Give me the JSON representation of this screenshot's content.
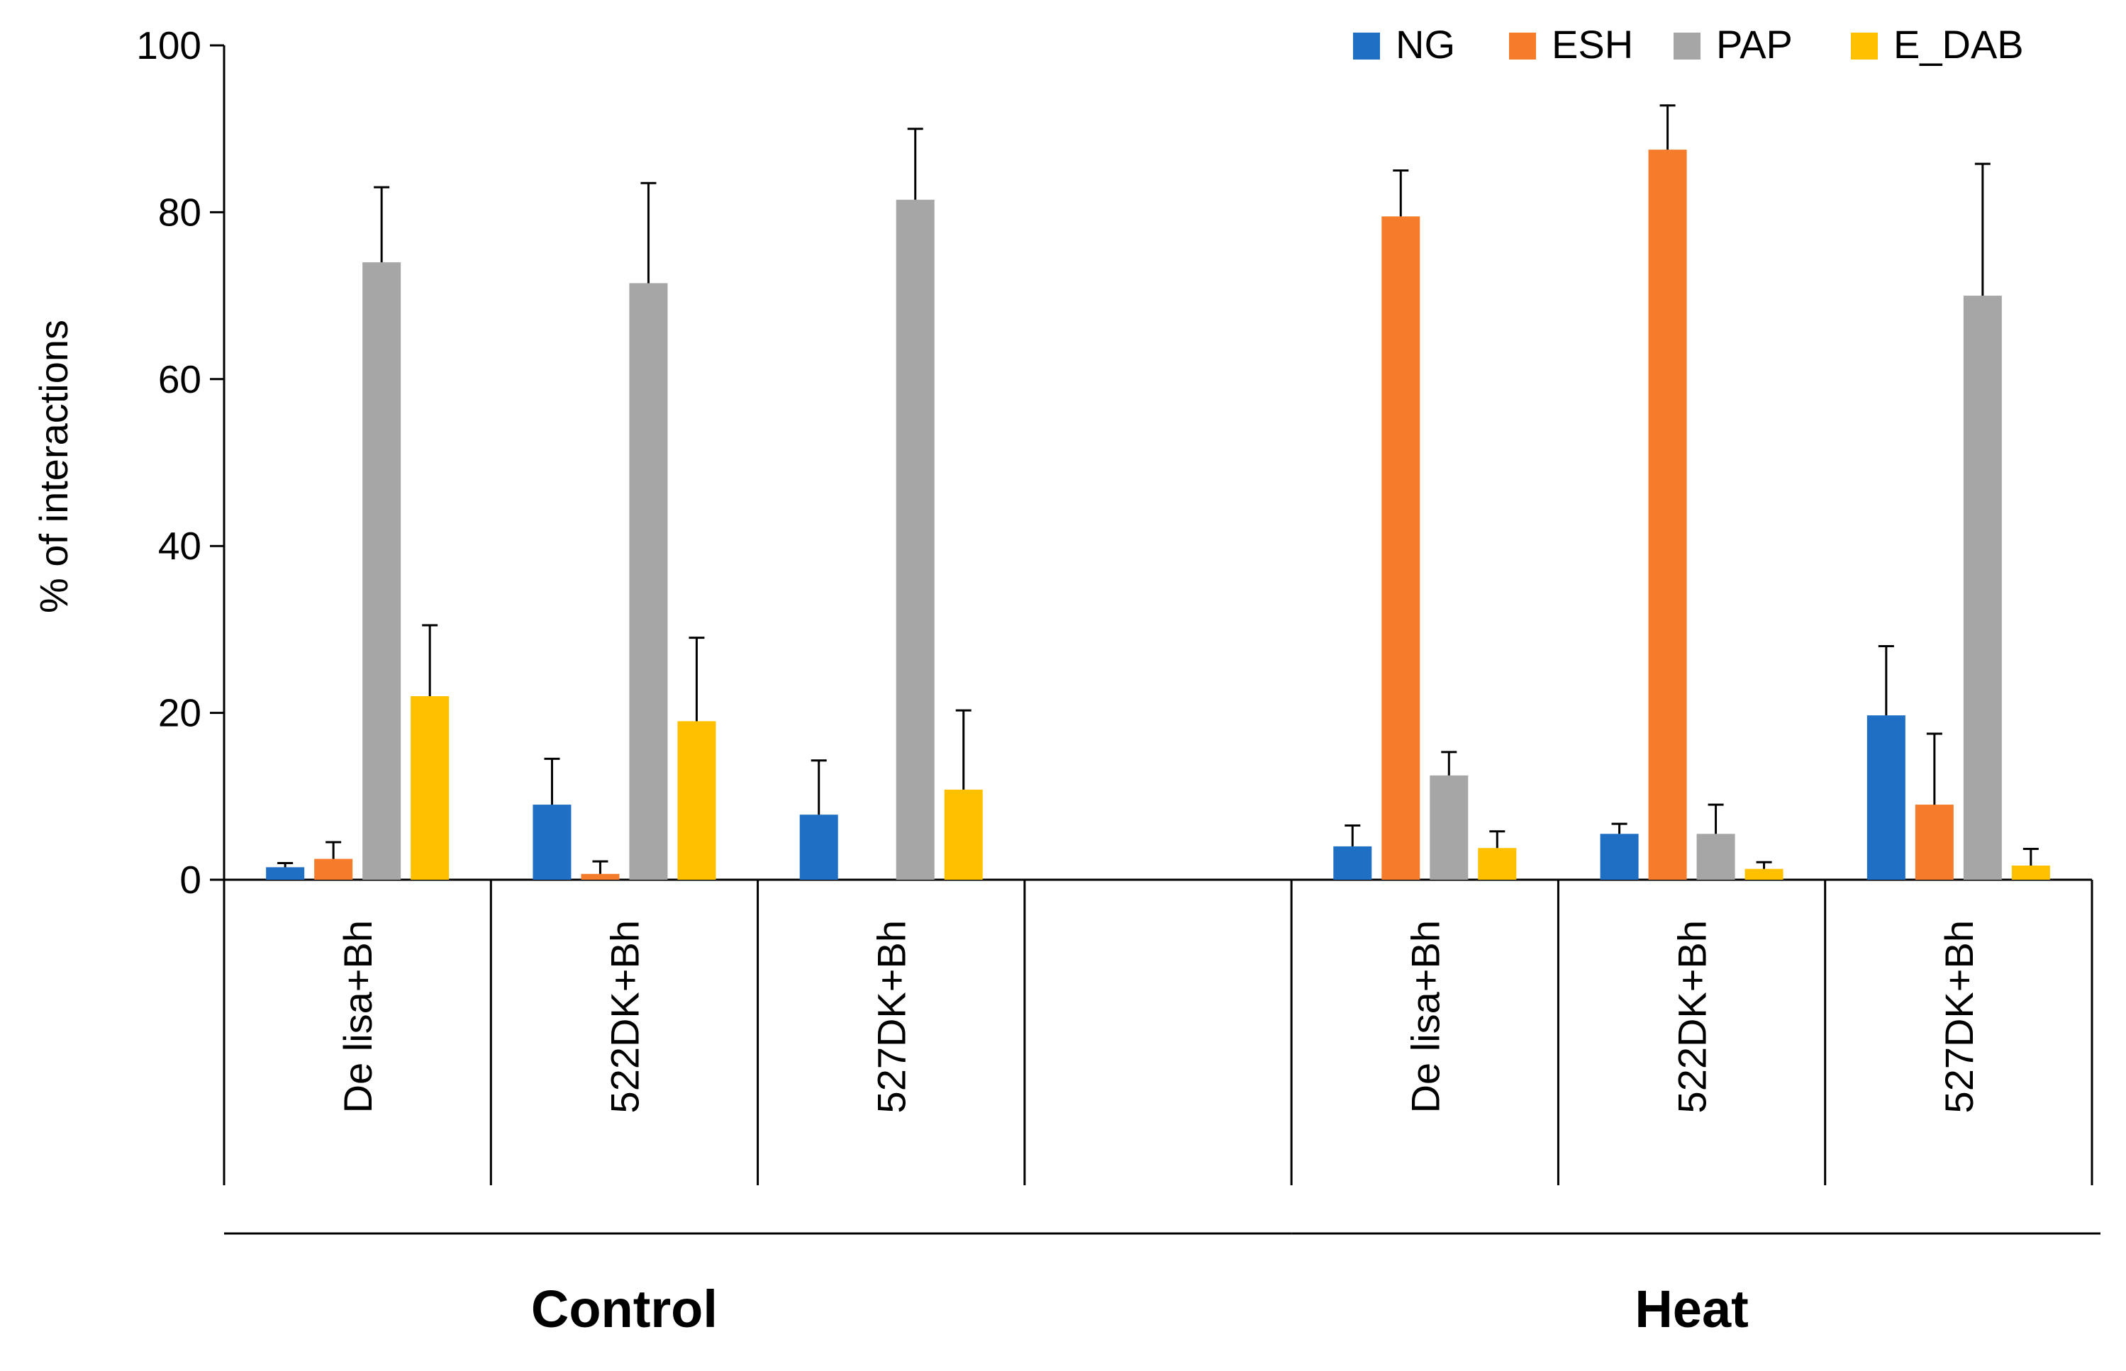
{
  "chart_data": {
    "type": "bar",
    "ylabel": "% of interactions",
    "ylim": [
      0,
      100
    ],
    "yticks": [
      0,
      20,
      40,
      60,
      80,
      100
    ],
    "grid": false,
    "legend_position": "top-right",
    "series": [
      {
        "name": "NG",
        "color": "#1f6fc4"
      },
      {
        "name": "ESH",
        "color": "#f47c2a"
      },
      {
        "name": "PAP",
        "color": "#a6a6a6"
      },
      {
        "name": "E_DAB",
        "color": "#ffc000"
      }
    ],
    "groups": [
      {
        "label": "Control",
        "categories": [
          {
            "label": "De lisa+Bh",
            "values": [
              1.5,
              2.5,
              74,
              22
            ],
            "errors": [
              0.5,
              2,
              9,
              8.5
            ]
          },
          {
            "label": "522DK+Bh",
            "values": [
              9,
              0.7,
              71.5,
              19
            ],
            "errors": [
              5.5,
              1.5,
              12,
              10
            ]
          },
          {
            "label": "527DK+Bh",
            "values": [
              7.8,
              0,
              81.5,
              10.8
            ],
            "errors": [
              6.5,
              0,
              8.5,
              9.5
            ]
          },
          {
            "label": "",
            "values": [
              null,
              null,
              null,
              null
            ],
            "errors": [
              null,
              null,
              null,
              null
            ]
          }
        ]
      },
      {
        "label": "Heat",
        "categories": [
          {
            "label": "De lisa+Bh",
            "values": [
              4,
              79.5,
              12.5,
              3.8
            ],
            "errors": [
              2.5,
              5.5,
              2.8,
              2
            ]
          },
          {
            "label": "522DK+Bh",
            "values": [
              5.5,
              87.5,
              5.5,
              1.3
            ],
            "errors": [
              1.2,
              5.3,
              3.5,
              0.8
            ]
          },
          {
            "label": "527DK+Bh",
            "values": [
              19.7,
              9,
              70,
              1.7
            ],
            "errors": [
              8.3,
              8.5,
              15.8,
              2
            ]
          }
        ]
      }
    ]
  }
}
